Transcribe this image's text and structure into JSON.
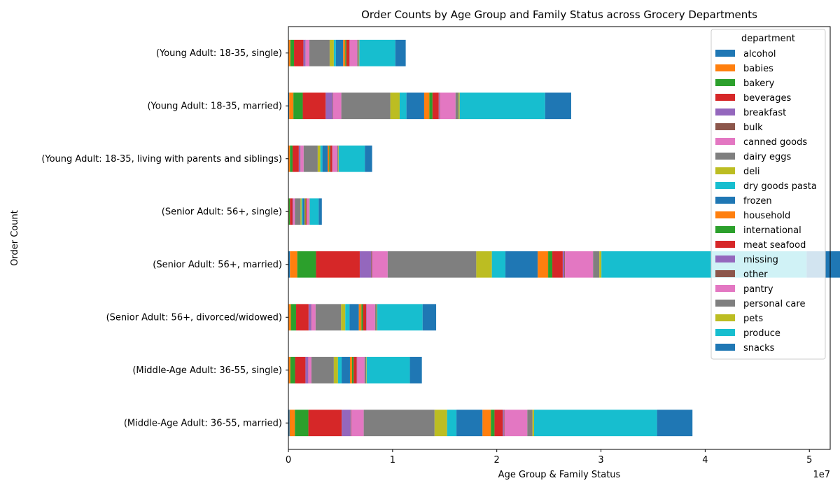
{
  "chart_data": {
    "type": "bar",
    "orientation": "horizontal",
    "stacked": true,
    "title": "Order Counts by Age Group and Family Status across Grocery Departments",
    "xlabel": "Age Group & Family Status",
    "ylabel": "Order Count",
    "xlim": [
      0,
      52000000
    ],
    "x_ticks": [
      "0",
      "1",
      "2",
      "3",
      "4",
      "5"
    ],
    "x_tick_values": [
      0,
      10000000,
      20000000,
      30000000,
      40000000,
      50000000
    ],
    "x_offset_label": "1e7",
    "legend": {
      "title": "department",
      "placement": "top-right"
    },
    "categories": [
      "(Young Adult: 18-35, single)",
      "(Young Adult: 18-35, married)",
      "(Young Adult: 18-35, living with parents and siblings)",
      "(Senior Adult: 56+, single)",
      "(Senior Adult: 56+, married)",
      "(Senior Adult: 56+, divorced/widowed)",
      "(Middle-Age Adult: 36-55, single)",
      "(Middle-Age Adult: 36-55, married)"
    ],
    "series": [
      {
        "name": "alcohol",
        "color": "#1f77b4",
        "values": [
          40000,
          80000,
          30000,
          10000,
          150000,
          40000,
          40000,
          120000
        ]
      },
      {
        "name": "babies",
        "color": "#ff7f0e",
        "values": [
          150000,
          400000,
          120000,
          40000,
          700000,
          200000,
          150000,
          500000
        ]
      },
      {
        "name": "bakery",
        "color": "#2ca02c",
        "values": [
          350000,
          900000,
          250000,
          100000,
          1800000,
          500000,
          450000,
          1300000
        ]
      },
      {
        "name": "beverages",
        "color": "#d62728",
        "values": [
          900000,
          2200000,
          600000,
          250000,
          4200000,
          1200000,
          1000000,
          3200000
        ]
      },
      {
        "name": "breakfast",
        "color": "#9467bd",
        "values": [
          200000,
          650000,
          150000,
          60000,
          1100000,
          250000,
          250000,
          850000
        ]
      },
      {
        "name": "bulk",
        "color": "#8c564b",
        "values": [
          20000,
          50000,
          15000,
          5000,
          80000,
          20000,
          20000,
          60000
        ]
      },
      {
        "name": "canned goods",
        "color": "#e377c2",
        "values": [
          350000,
          800000,
          300000,
          150000,
          1500000,
          400000,
          300000,
          1200000
        ]
      },
      {
        "name": "dairy eggs",
        "color": "#7f7f7f",
        "values": [
          1950000,
          4700000,
          1350000,
          550000,
          8500000,
          2450000,
          2150000,
          6800000
        ]
      },
      {
        "name": "deli",
        "color": "#bcbd22",
        "values": [
          400000,
          900000,
          250000,
          100000,
          1500000,
          400000,
          400000,
          1200000
        ]
      },
      {
        "name": "dry goods pasta",
        "color": "#17becf",
        "values": [
          200000,
          650000,
          200000,
          100000,
          1300000,
          400000,
          350000,
          900000
        ]
      },
      {
        "name": "frozen",
        "color": "#1f77b4",
        "values": [
          700000,
          1700000,
          500000,
          200000,
          3100000,
          900000,
          800000,
          2500000
        ]
      },
      {
        "name": "household",
        "color": "#ff7f0e",
        "values": [
          200000,
          500000,
          150000,
          80000,
          1000000,
          250000,
          200000,
          800000
        ]
      },
      {
        "name": "international",
        "color": "#2ca02c",
        "values": [
          100000,
          300000,
          100000,
          50000,
          400000,
          150000,
          150000,
          350000
        ]
      },
      {
        "name": "meat seafood",
        "color": "#d62728",
        "values": [
          300000,
          600000,
          200000,
          80000,
          1000000,
          300000,
          300000,
          800000
        ]
      },
      {
        "name": "missing",
        "color": "#9467bd",
        "values": [
          30000,
          70000,
          20000,
          10000,
          150000,
          40000,
          30000,
          100000
        ]
      },
      {
        "name": "other",
        "color": "#8c564b",
        "values": [
          20000,
          40000,
          10000,
          5000,
          60000,
          20000,
          20000,
          50000
        ]
      },
      {
        "name": "pantry",
        "color": "#e377c2",
        "values": [
          700000,
          1500000,
          450000,
          200000,
          2700000,
          800000,
          700000,
          2200000
        ]
      },
      {
        "name": "personal care",
        "color": "#7f7f7f",
        "values": [
          150000,
          300000,
          100000,
          50000,
          600000,
          150000,
          150000,
          500000
        ]
      },
      {
        "name": "pets",
        "color": "#bcbd22",
        "values": [
          50000,
          100000,
          40000,
          20000,
          200000,
          60000,
          50000,
          150000
        ]
      },
      {
        "name": "produce",
        "color": "#17becf",
        "values": [
          3450000,
          8200000,
          2500000,
          850000,
          19700000,
          4350000,
          4150000,
          11800000
        ]
      },
      {
        "name": "snacks",
        "color": "#1f77b4",
        "values": [
          1000000,
          2500000,
          700000,
          300000,
          4400000,
          1300000,
          1150000,
          3400000
        ]
      }
    ]
  }
}
